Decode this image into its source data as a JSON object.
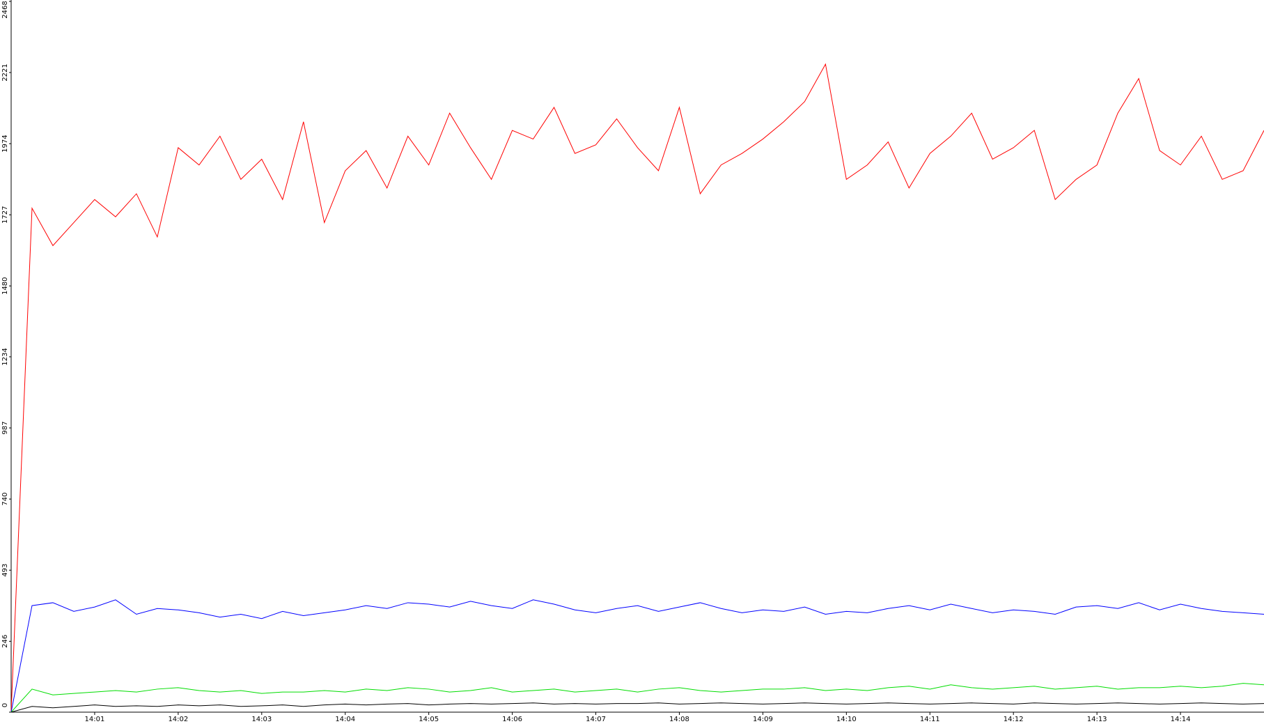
{
  "chart_data": {
    "type": "line",
    "x": [
      0,
      0.25,
      0.5,
      0.75,
      1,
      1.25,
      1.5,
      1.75,
      2,
      2.25,
      2.5,
      2.75,
      3,
      3.25,
      3.5,
      3.75,
      4,
      4.25,
      4.5,
      4.75,
      5,
      5.25,
      5.5,
      5.75,
      6,
      6.25,
      6.5,
      6.75,
      7,
      7.25,
      7.5,
      7.75,
      8,
      8.25,
      8.5,
      8.75,
      9,
      9.25,
      9.5,
      9.75,
      10,
      10.25,
      10.5,
      10.75,
      11,
      11.25,
      11.5,
      11.75,
      12,
      12.25,
      12.5,
      12.75,
      13,
      13.25,
      13.5,
      13.75,
      14,
      14.25,
      14.5,
      14.75,
      15
    ],
    "series": [
      {
        "color": "#ff0000",
        "values": [
          0,
          1750,
          1620,
          1700,
          1780,
          1720,
          1800,
          1650,
          1960,
          1900,
          2000,
          1850,
          1920,
          1780,
          2050,
          1700,
          1880,
          1950,
          1820,
          2000,
          1900,
          2080,
          1960,
          1850,
          2020,
          1990,
          2100,
          1940,
          1970,
          2060,
          1960,
          1880,
          2100,
          1800,
          1900,
          1940,
          1990,
          2050,
          2120,
          2250,
          1850,
          1900,
          1980,
          1820,
          1940,
          2000,
          2080,
          1920,
          1960,
          2020,
          1780,
          1850,
          1900,
          2080,
          2200,
          1950,
          1900,
          2000,
          1850,
          1880,
          2020
        ]
      },
      {
        "color": "#0000ff",
        "values": [
          0,
          370,
          380,
          350,
          365,
          390,
          340,
          360,
          355,
          345,
          330,
          340,
          325,
          350,
          335,
          345,
          355,
          370,
          360,
          380,
          375,
          365,
          385,
          370,
          360,
          390,
          375,
          355,
          345,
          360,
          370,
          350,
          365,
          380,
          360,
          345,
          355,
          350,
          365,
          340,
          350,
          345,
          360,
          370,
          355,
          375,
          360,
          345,
          355,
          350,
          340,
          365,
          370,
          360,
          380,
          355,
          375,
          360,
          350,
          345,
          340
        ]
      },
      {
        "color": "#00dd00",
        "values": [
          0,
          80,
          60,
          65,
          70,
          75,
          70,
          80,
          85,
          75,
          70,
          75,
          65,
          70,
          70,
          75,
          70,
          80,
          75,
          85,
          80,
          70,
          75,
          85,
          70,
          75,
          80,
          70,
          75,
          80,
          70,
          80,
          85,
          75,
          70,
          75,
          80,
          80,
          85,
          75,
          80,
          75,
          85,
          90,
          80,
          95,
          85,
          80,
          85,
          90,
          80,
          85,
          90,
          80,
          85,
          85,
          90,
          85,
          90,
          100,
          95
        ]
      },
      {
        "color": "#000000",
        "values": [
          0,
          20,
          15,
          20,
          25,
          20,
          22,
          20,
          25,
          22,
          25,
          20,
          22,
          25,
          20,
          25,
          28,
          25,
          28,
          30,
          25,
          28,
          30,
          28,
          30,
          32,
          28,
          30,
          28,
          30,
          30,
          32,
          28,
          30,
          32,
          30,
          28,
          30,
          32,
          30,
          28,
          30,
          32,
          30,
          28,
          30,
          32,
          30,
          28,
          32,
          30,
          28,
          30,
          32,
          30,
          28,
          30,
          32,
          30,
          28,
          30
        ]
      }
    ],
    "xlim": [
      0,
      15
    ],
    "xticks": [
      {
        "value": 1,
        "label": "14:01"
      },
      {
        "value": 2,
        "label": "14:02"
      },
      {
        "value": 3,
        "label": "14:03"
      },
      {
        "value": 4,
        "label": "14:04"
      },
      {
        "value": 5,
        "label": "14:05"
      },
      {
        "value": 6,
        "label": "14:06"
      },
      {
        "value": 7,
        "label": "14:07"
      },
      {
        "value": 8,
        "label": "14:08"
      },
      {
        "value": 9,
        "label": "14:09"
      },
      {
        "value": 10,
        "label": "14:10"
      },
      {
        "value": 11,
        "label": "14:11"
      },
      {
        "value": 12,
        "label": "14:12"
      },
      {
        "value": 13,
        "label": "14:13"
      },
      {
        "value": 14,
        "label": "14:14"
      }
    ],
    "ylim": [
      0,
      2468
    ],
    "yticks": [
      0,
      246,
      493,
      740,
      987,
      1234,
      1480,
      1727,
      1974,
      2221,
      2468
    ]
  }
}
